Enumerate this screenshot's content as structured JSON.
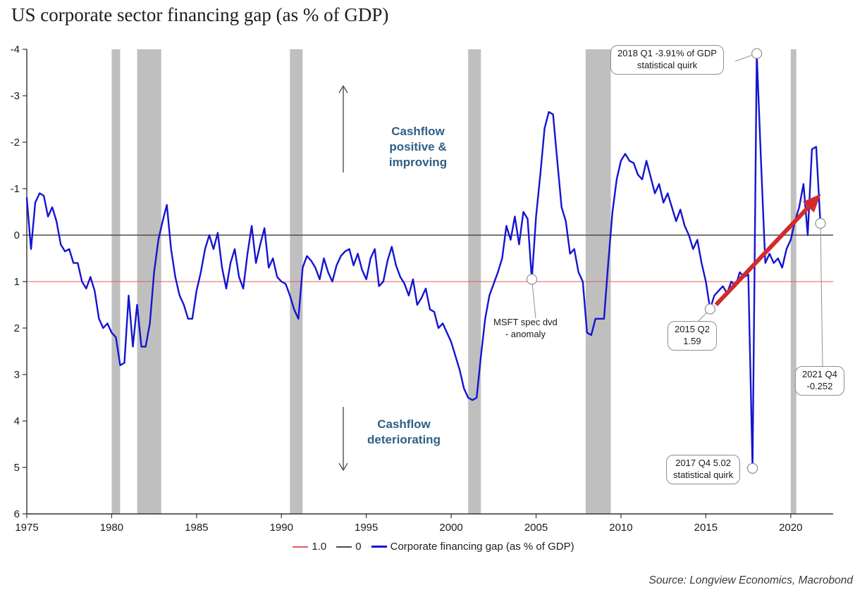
{
  "page": {
    "title": "US corporate sector financing gap (as % of GDP)",
    "source": "Source: Longview Economics, Macrobond"
  },
  "legend": {
    "items": [
      {
        "label": "1.0",
        "color": "#e05b5b",
        "weight": 2
      },
      {
        "label": "0",
        "color": "#4d4d4d",
        "weight": 2
      },
      {
        "label": "Corporate financing gap (as % of GDP)",
        "color": "#1414d2",
        "weight": 3
      }
    ]
  },
  "chart_data": {
    "type": "line",
    "title": "US corporate sector financing gap (as % of GDP)",
    "xlabel": "",
    "ylabel": "",
    "x_axis": {
      "range": [
        1975,
        2022.5
      ],
      "ticks": [
        1975,
        1980,
        1985,
        1990,
        1995,
        2000,
        2005,
        2010,
        2015,
        2020
      ]
    },
    "y_axis": {
      "range": [
        -4,
        6
      ],
      "ticks": [
        -4,
        -3,
        -2,
        -1,
        0,
        1,
        2,
        3,
        4,
        5,
        6
      ],
      "inverted": true
    },
    "grid": false,
    "legend_position": "bottom",
    "reference_lines": [
      {
        "label": "1.0",
        "value": 1.0,
        "color": "#e05b5b"
      },
      {
        "label": "0",
        "value": 0,
        "color": "#4d4d4d"
      }
    ],
    "recession_bands": [
      [
        1980.0,
        1980.5
      ],
      [
        1981.5,
        1982.92
      ],
      [
        1990.5,
        1991.25
      ],
      [
        2001.0,
        2001.75
      ],
      [
        2007.92,
        2009.4
      ],
      [
        2020.0,
        2020.33
      ]
    ],
    "series": [
      {
        "name": "Corporate financing gap (as % of GDP)",
        "color": "#1414d2",
        "x_start": 1975.0,
        "x_step": 0.25,
        "values": [
          -0.8,
          0.3,
          -0.7,
          -0.9,
          -0.85,
          -0.4,
          -0.6,
          -0.3,
          0.2,
          0.35,
          0.3,
          0.6,
          0.6,
          1.0,
          1.15,
          0.9,
          1.2,
          1.8,
          2.0,
          1.9,
          2.1,
          2.2,
          2.8,
          2.75,
          1.3,
          2.4,
          1.5,
          2.4,
          2.4,
          1.9,
          0.8,
          0.1,
          -0.3,
          -0.65,
          0.3,
          0.9,
          1.3,
          1.5,
          1.8,
          1.8,
          1.2,
          0.8,
          0.3,
          0.0,
          0.3,
          -0.05,
          0.7,
          1.15,
          0.6,
          0.3,
          0.9,
          1.15,
          0.4,
          -0.2,
          0.6,
          0.2,
          -0.15,
          0.7,
          0.5,
          0.9,
          1.0,
          1.05,
          1.3,
          1.6,
          1.8,
          0.7,
          0.45,
          0.55,
          0.7,
          0.95,
          0.5,
          0.8,
          1.0,
          0.65,
          0.45,
          0.35,
          0.3,
          0.65,
          0.4,
          0.75,
          0.95,
          0.5,
          0.3,
          1.1,
          1.0,
          0.55,
          0.25,
          0.65,
          0.9,
          1.05,
          1.3,
          0.95,
          1.5,
          1.35,
          1.15,
          1.6,
          1.65,
          2.0,
          1.9,
          2.1,
          2.3,
          2.6,
          2.9,
          3.3,
          3.5,
          3.55,
          3.5,
          2.6,
          1.8,
          1.3,
          1.05,
          0.8,
          0.5,
          -0.2,
          0.1,
          -0.4,
          0.2,
          -0.5,
          -0.35,
          0.95,
          -0.4,
          -1.3,
          -2.3,
          -2.65,
          -2.6,
          -1.6,
          -0.6,
          -0.3,
          0.4,
          0.3,
          0.8,
          1.0,
          2.1,
          2.15,
          1.8,
          1.8,
          1.8,
          0.6,
          -0.5,
          -1.2,
          -1.6,
          -1.75,
          -1.6,
          -1.55,
          -1.3,
          -1.2,
          -1.6,
          -1.25,
          -0.9,
          -1.1,
          -0.7,
          -0.9,
          -0.6,
          -0.3,
          -0.55,
          -0.2,
          0.0,
          0.3,
          0.1,
          0.6,
          1.0,
          1.59,
          1.3,
          1.2,
          1.1,
          1.25,
          1.0,
          1.1,
          0.8,
          0.9,
          0.85,
          5.02,
          -3.91,
          -1.6,
          0.6,
          0.4,
          0.6,
          0.5,
          0.7,
          0.3,
          0.1,
          -0.3,
          -0.6,
          -1.1,
          0.0,
          -1.85,
          -1.9,
          -0.252
        ]
      }
    ],
    "annotations": [
      {
        "id": "q1-2018",
        "lines": [
          "2018 Q1 -3.91% of GDP",
          "statistical quirk"
        ],
        "anchor": {
          "x": 2018.0,
          "y": -3.91
        },
        "boxed": true
      },
      {
        "id": "msft",
        "lines": [
          "MSFT spec dvd",
          "- anomaly"
        ],
        "anchor": {
          "x": 2004.75,
          "y": 0.95
        },
        "boxed": false
      },
      {
        "id": "q2-2015",
        "lines": [
          "2015 Q2",
          "1.59"
        ],
        "anchor": {
          "x": 2015.25,
          "y": 1.59
        },
        "boxed": true
      },
      {
        "id": "q4-2017",
        "lines": [
          "2017 Q4 5.02",
          "statistical quirk"
        ],
        "anchor": {
          "x": 2017.75,
          "y": 5.02
        },
        "boxed": true
      },
      {
        "id": "q4-2021",
        "lines": [
          "2021 Q4",
          "-0.252"
        ],
        "anchor": {
          "x": 2021.75,
          "y": -0.252
        },
        "boxed": true
      }
    ],
    "zone_labels": [
      {
        "text": "Cashflow positive & improving",
        "direction": "up"
      },
      {
        "text": "Cashflow deteriorating",
        "direction": "down"
      }
    ],
    "trend_arrow": {
      "from": {
        "x": 2015.6,
        "y": 1.5
      },
      "to": {
        "x": 2021.55,
        "y": -0.8
      },
      "color": "#d22b2b"
    }
  }
}
